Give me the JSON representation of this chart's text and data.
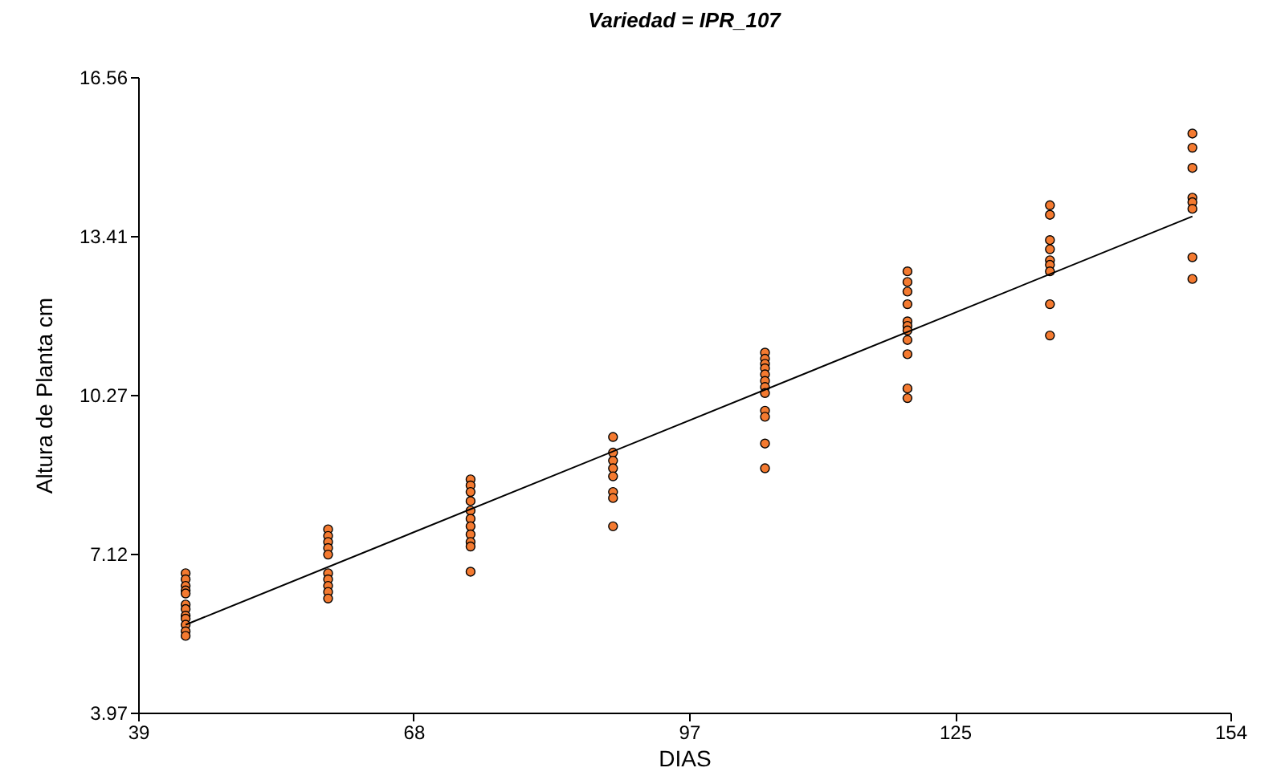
{
  "chart_data": {
    "type": "scatter",
    "title": "Variedad = IPR_107",
    "xlabel": "DIAS",
    "ylabel": "Altura de Planta cm",
    "xlim": [
      39,
      154
    ],
    "xticks": [
      39,
      68,
      97,
      125,
      154
    ],
    "ylim": [
      3.97,
      16.56
    ],
    "yticks": [
      3.97,
      7.12,
      10.27,
      13.41,
      16.56
    ],
    "grid": false,
    "series": [
      {
        "marker": "circle",
        "color": "#f47a30",
        "x": [
          44,
          44,
          44,
          44,
          44,
          44,
          44,
          44,
          44,
          44,
          44,
          44,
          59,
          59,
          59,
          59,
          59,
          59,
          59,
          59,
          59,
          59,
          74,
          74,
          74,
          74,
          74,
          74,
          74,
          74,
          74,
          74,
          74,
          89,
          89,
          89,
          89,
          89,
          89,
          89,
          89,
          105,
          105,
          105,
          105,
          105,
          105,
          105,
          105,
          105,
          105,
          105,
          105,
          120,
          120,
          120,
          120,
          120,
          120,
          120,
          120,
          120,
          120,
          120,
          135,
          135,
          135,
          135,
          135,
          135,
          135,
          135,
          135,
          150,
          150,
          150,
          150,
          150,
          150,
          150,
          150
        ],
        "values": [
          6.73,
          6.61,
          6.48,
          6.39,
          6.33,
          6.11,
          6.02,
          5.89,
          5.83,
          5.71,
          5.58,
          5.49,
          7.6,
          7.47,
          7.35,
          7.23,
          7.1,
          6.73,
          6.61,
          6.48,
          6.36,
          6.23,
          8.59,
          8.47,
          8.34,
          8.16,
          7.97,
          7.81,
          7.66,
          7.5,
          7.35,
          7.26,
          6.76,
          9.43,
          9.12,
          8.96,
          8.81,
          8.65,
          8.34,
          8.22,
          7.66,
          11.1,
          10.98,
          10.88,
          10.79,
          10.67,
          10.54,
          10.42,
          10.3,
          9.95,
          9.83,
          9.3,
          8.81,
          12.71,
          12.5,
          12.31,
          12.06,
          11.72,
          11.63,
          11.54,
          11.35,
          11.07,
          10.39,
          10.2,
          14.02,
          13.83,
          13.33,
          13.15,
          12.93,
          12.84,
          12.71,
          12.06,
          11.44,
          15.44,
          15.16,
          14.76,
          14.17,
          14.08,
          13.95,
          12.99,
          12.56
        ]
      },
      {
        "type": "line",
        "color": "#000000",
        "x": [
          44,
          150
        ],
        "values": [
          5.71,
          13.8
        ]
      }
    ]
  }
}
